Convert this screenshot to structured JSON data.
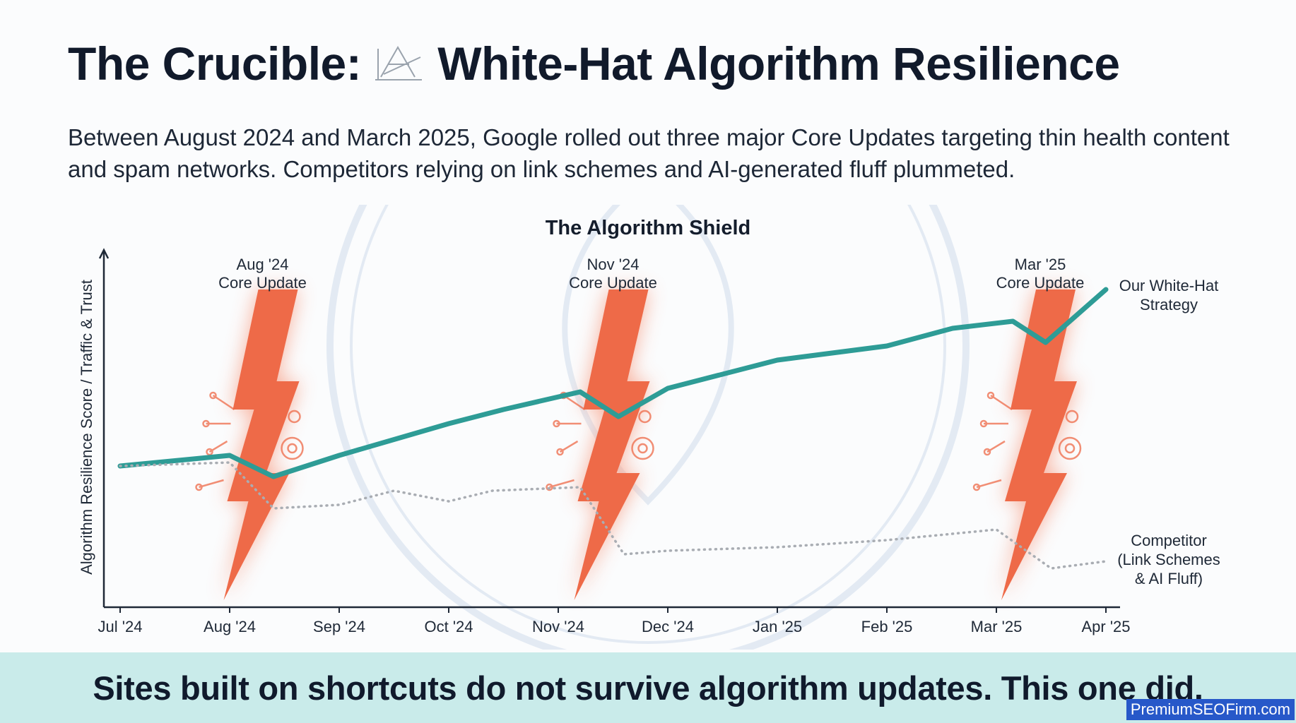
{
  "header": {
    "title_left": "The Crucible:",
    "title_right": "White-Hat Algorithm Resilience",
    "intro_text": "Between August 2024 and March 2025, Google rolled out three major Core Updates targeting thin health content and spam networks. Competitors relying on link schemes and AI-generated fluff plummeted."
  },
  "chart_data": {
    "type": "line",
    "title": "The Algorithm Shield",
    "ylabel": "Algorithm Resilience Score / Traffic & Trust",
    "xlabel": "",
    "x_ticks": [
      "Jul '24",
      "Aug '24",
      "Sep '24",
      "Oct '24",
      "Nov '24",
      "Dec '24",
      "Jan '25",
      "Feb '25",
      "Mar '25",
      "Apr '25"
    ],
    "xlim": [
      0,
      9
    ],
    "ylim": [
      0,
      100
    ],
    "grid": false,
    "series": [
      {
        "name": "Our White-Hat Strategy",
        "color": "#2e9c96",
        "style": "solid",
        "x": [
          0,
          1,
          1.4,
          2,
          3,
          3.5,
          4.2,
          4.55,
          5,
          6,
          7,
          7.6,
          8.15,
          8.45,
          9
        ],
        "y": [
          40,
          43,
          37,
          43,
          52,
          56,
          61,
          54,
          62,
          70,
          74,
          79,
          81,
          75,
          90
        ]
      },
      {
        "name": "Competitor (Link Schemes & AI Fluff)",
        "color": "#a9adb3",
        "style": "dotted",
        "x": [
          0,
          1,
          1.4,
          2,
          2.5,
          3,
          3.4,
          4.2,
          4.6,
          5,
          6,
          7,
          8,
          8.5,
          9
        ],
        "y": [
          40,
          41,
          28,
          29,
          33,
          30,
          33,
          34,
          15,
          16,
          17,
          19,
          22,
          11,
          13
        ]
      }
    ],
    "annotations": [
      {
        "x": 1.3,
        "label_line1": "Aug '24",
        "label_line2": "Core Update"
      },
      {
        "x": 4.5,
        "label_line1": "Nov '24",
        "label_line2": "Core Update"
      },
      {
        "x": 8.4,
        "label_line1": "Mar '25",
        "label_line2": "Core Update"
      }
    ],
    "end_labels": {
      "strategy": [
        "Our White-Hat",
        "Strategy"
      ],
      "competitor": [
        "Competitor",
        "(Link Schemes",
        "& AI Fluff)"
      ]
    },
    "colors": {
      "bolt": "#ee6a48",
      "bolt_glow": "#f7a892",
      "axis": "#1f2937"
    }
  },
  "banner": {
    "text": "Sites built on shortcuts do not survive algorithm updates. This one did."
  },
  "credit": {
    "text": "PremiumSEOFirm.com"
  }
}
